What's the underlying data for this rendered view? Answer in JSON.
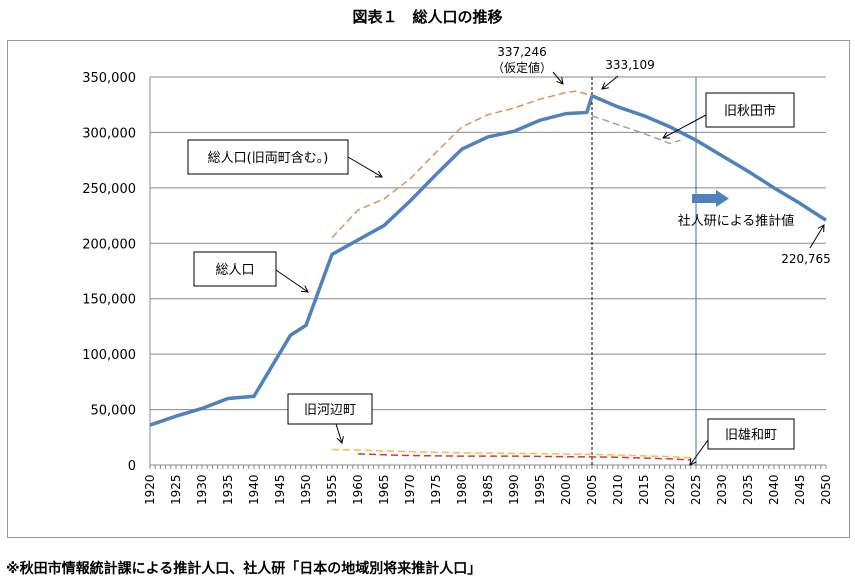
{
  "title": "図表１　総人口の推移",
  "footnote": "※秋田市情報統計課による推計人口、社人研「日本の地域別将来推計人口」",
  "chart_data": {
    "type": "line",
    "title": "図表１　総人口の推移",
    "xlabel": "",
    "ylabel": "",
    "xlim": [
      1920,
      2050
    ],
    "ylim": [
      0,
      350000
    ],
    "yticks": [
      0,
      50000,
      100000,
      150000,
      200000,
      250000,
      300000,
      350000
    ],
    "ytick_labels": [
      "0",
      "50,000",
      "100,000",
      "150,000",
      "200,000",
      "250,000",
      "300,000",
      "350,000"
    ],
    "xtick_labels": [
      "1920",
      "1925",
      "1930",
      "1935",
      "1940",
      "1945",
      "1950",
      "1955",
      "1960",
      "1965",
      "1970",
      "1975",
      "1980",
      "1985",
      "1990",
      "1995",
      "2000",
      "2005",
      "2010",
      "2015",
      "2020",
      "2025",
      "2030",
      "2035",
      "2040",
      "2045",
      "2050"
    ],
    "grid": true,
    "series": [
      {
        "name": "総人口",
        "color": "#4f81bd",
        "style": "solid",
        "x": [
          1920,
          1925,
          1930,
          1935,
          1940,
          1947,
          1950,
          1955,
          1960,
          1965,
          1970,
          1975,
          1980,
          1985,
          1990,
          1995,
          2000,
          2004,
          2005,
          2010,
          2015,
          2020,
          2025,
          2030,
          2035,
          2040,
          2045,
          2050
        ],
        "y": [
          36000,
          44000,
          51000,
          60000,
          62000,
          117000,
          126000,
          190000,
          203000,
          216000,
          238000,
          262000,
          285000,
          296000,
          301000,
          311000,
          317000,
          318000,
          333109,
          323000,
          315000,
          305000,
          293000,
          279000,
          265000,
          250000,
          236000,
          220765
        ]
      },
      {
        "name": "総人口(旧両町含む。)",
        "color": "#e0904a",
        "style": "dashed",
        "x": [
          1955,
          1960,
          1965,
          1970,
          1975,
          1980,
          1985,
          1990,
          1995,
          2000,
          2002,
          2005
        ],
        "y": [
          205000,
          230000,
          240000,
          258000,
          282000,
          305000,
          316000,
          322000,
          330000,
          336000,
          337246,
          333109
        ]
      },
      {
        "name": "旧秋田市",
        "color": "#a0a0a0",
        "style": "dashed",
        "x": [
          2005,
          2010,
          2015,
          2020,
          2022
        ],
        "y": [
          315000,
          307000,
          299000,
          290000,
          293000
        ]
      },
      {
        "name": "旧河辺町",
        "color": "#f0c040",
        "style": "dashed",
        "x": [
          1955,
          1960,
          1970,
          1980,
          1990,
          2000,
          2010,
          2020,
          2024
        ],
        "y": [
          14000,
          13500,
          12000,
          11000,
          10500,
          10000,
          9000,
          7500,
          6500
        ]
      },
      {
        "name": "旧雄和町",
        "color": "#e03040",
        "style": "dashed",
        "x": [
          1960,
          1970,
          1980,
          1990,
          2000,
          2010,
          2020,
          2024
        ],
        "y": [
          10000,
          8500,
          8000,
          8000,
          7500,
          7000,
          5500,
          4500
        ]
      }
    ],
    "annotations": [
      {
        "text": "337,246",
        "text2": "（仮定値）"
      },
      {
        "text": "333,109"
      },
      {
        "text": "旧秋田市"
      },
      {
        "text": "総人口(旧両町含む。)"
      },
      {
        "text": "社人研による推計値"
      },
      {
        "text": "220,765"
      },
      {
        "text": "総人口"
      },
      {
        "text": "旧河辺町"
      },
      {
        "text": "旧雄和町"
      }
    ]
  }
}
